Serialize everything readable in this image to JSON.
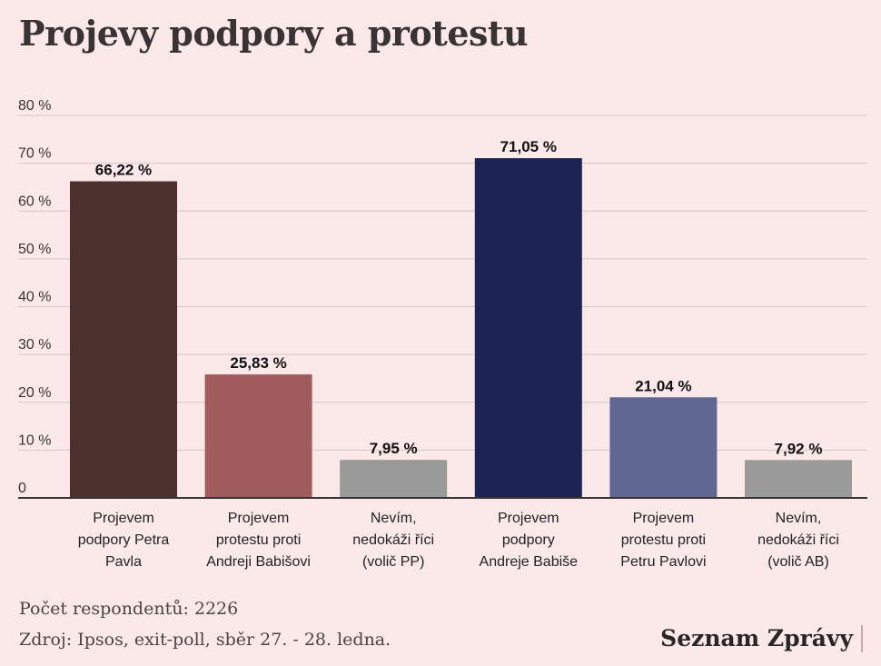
{
  "header": {
    "title": "Projevy podpory a protestu"
  },
  "chart_data": {
    "type": "bar",
    "title": "Projevy podpory a protestu",
    "xlabel": "",
    "ylabel": "",
    "ylim": [
      0,
      80
    ],
    "yticks": [
      0,
      10,
      20,
      30,
      40,
      50,
      60,
      70,
      80
    ],
    "ytick_labels": [
      "0",
      "10 %",
      "20 %",
      "30 %",
      "40 %",
      "50 %",
      "60 %",
      "70 %",
      "80 %"
    ],
    "grid": true,
    "categories": [
      [
        "Projevem",
        "podpory Petra",
        "Pavla"
      ],
      [
        "Projevem",
        "protestu proti",
        "Andreji Babišovi"
      ],
      [
        "Nevím,",
        "nedokáži říci",
        "(volič PP)"
      ],
      [
        "Projevem",
        "podpory",
        "Andreje Babiše"
      ],
      [
        "Projevem",
        "protestu proti",
        "Petru Pavlovi"
      ],
      [
        "Nevím,",
        "nedokáži říci",
        "(volič AB)"
      ]
    ],
    "values": [
      66.22,
      25.83,
      7.95,
      71.05,
      21.04,
      7.92
    ],
    "value_labels": [
      "66,22 %",
      "25,83 %",
      "7,95 %",
      "71,05 %",
      "21,04 %",
      "7,92 %"
    ],
    "colors": [
      "#4c302e",
      "#a05c5c",
      "#9a9a9a",
      "#1c2453",
      "#5e6890",
      "#9a9a9a"
    ]
  },
  "footer": {
    "respondents": "Počet respondentů: 2226",
    "source": "Zdroj: Ipsos, exit-poll, sběr 27. - 28. ledna.",
    "brand": "Seznam Zprávy"
  },
  "colors": {
    "background": "#fbe9ea",
    "gridline": "#d4c6c7",
    "axis": "#3a3333"
  }
}
